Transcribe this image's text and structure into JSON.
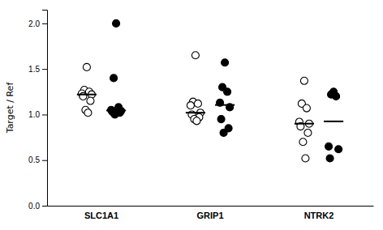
{
  "chart_data": {
    "type": "strip",
    "ylabel": "Target / Ref",
    "categories": [
      "SLC1A1",
      "GRIP1",
      "NTRK2"
    ],
    "ylim": [
      0.0,
      2.15
    ],
    "yticks": [
      {
        "value": 0,
        "label": "0.0"
      },
      0.5,
      {
        "value": 1,
        "label": "1.0"
      },
      1.5,
      {
        "value": 2,
        "label": "2.0"
      }
    ],
    "series": [
      {
        "color": "white",
        "marker": "circle",
        "values": [
          [
            1.52,
            1.27,
            1.25,
            1.23,
            1.22,
            1.2,
            1.15,
            1.05,
            1.02
          ],
          [
            1.65,
            1.14,
            1.12,
            1.1,
            1.02,
            1.0,
            0.97,
            0.95,
            0.93
          ],
          [
            1.37,
            1.12,
            1.07,
            0.92,
            0.9,
            0.87,
            0.8,
            0.7,
            0.52
          ]
        ],
        "medians": [
          1.22,
          1.02,
          0.9
        ]
      },
      {
        "color": "black",
        "marker": "circle",
        "values": [
          [
            2.0,
            1.4,
            1.08,
            1.05,
            1.04,
            1.03,
            1.02,
            1.0
          ],
          [
            1.57,
            1.3,
            1.25,
            1.13,
            1.08,
            0.95,
            0.85,
            0.8
          ],
          [
            1.25,
            1.22,
            1.2,
            0.65,
            0.62,
            0.52
          ]
        ],
        "medians": [
          1.045,
          1.105,
          0.925
        ]
      }
    ]
  }
}
